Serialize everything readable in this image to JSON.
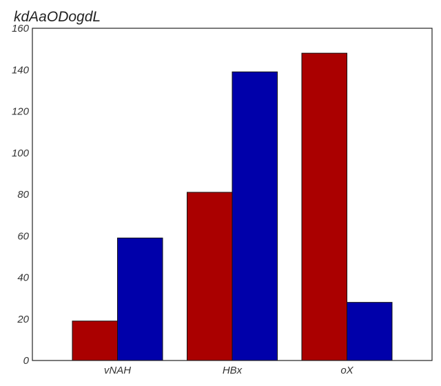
{
  "chart_data": {
    "type": "bar",
    "title": "kdAaODogdL",
    "xlabel": "",
    "ylabel": "",
    "categories": [
      "vNAH",
      "HBx",
      "oX"
    ],
    "series": [
      {
        "color": "#aa0000",
        "values": [
          19,
          81,
          148
        ]
      },
      {
        "color": "#0000aa",
        "values": [
          59,
          139,
          28
        ]
      }
    ],
    "ylim": [
      0,
      160
    ],
    "yticks": [
      0,
      20,
      40,
      60,
      80,
      100,
      120,
      140,
      160
    ],
    "grid": false,
    "legend": "none"
  }
}
